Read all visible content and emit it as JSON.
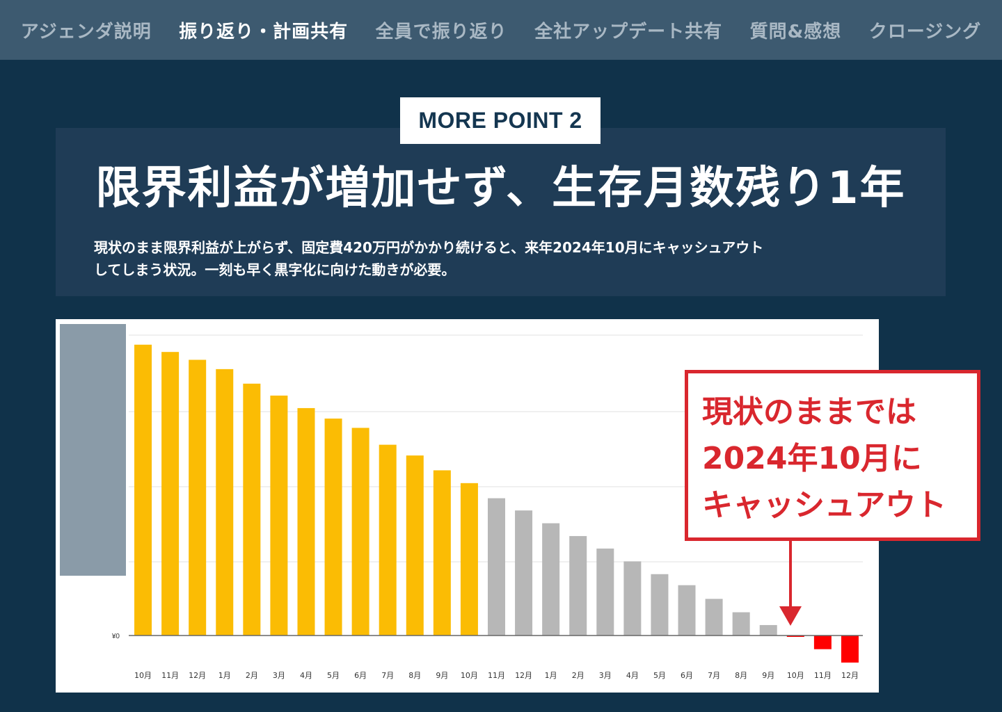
{
  "nav": {
    "items": [
      {
        "label": "アジェンダ説明",
        "active": false
      },
      {
        "label": "振り返り・計画共有",
        "active": true
      },
      {
        "label": "全員で振り返り",
        "active": false
      },
      {
        "label": "全社アップデート共有",
        "active": false
      },
      {
        "label": "質問&感想",
        "active": false
      },
      {
        "label": "クロージング",
        "active": false
      }
    ]
  },
  "badge": "MORE POINT 2",
  "headline": "限界利益が増加せず、生存月数残り1年",
  "description": {
    "line1": "現状のまま限界利益が上がらず、固定費420万円がかかり続けると、来年2024年10月にキャッシュアウト",
    "line2": "してしまう状況。一刻も早く黒字化に向けた動きが必要。"
  },
  "callout": {
    "line1": "現状のままでは",
    "line2": "2024年10月に",
    "line3": "キャッシュアウト"
  },
  "colors": {
    "actual": "#fbbc04",
    "forecast": "#b7b7b7",
    "negative": "#ff0000",
    "accent": "#d9272e"
  },
  "chart_data": {
    "type": "bar",
    "y_zero_label": "¥0",
    "categories": [
      "10月",
      "11月",
      "12月",
      "1月",
      "2月",
      "3月",
      "4月",
      "5月",
      "6月",
      "7月",
      "8月",
      "9月",
      "10月",
      "11月",
      "12月",
      "1月",
      "2月",
      "3月",
      "4月",
      "5月",
      "6月",
      "7月",
      "8月",
      "9月",
      "10月",
      "11月",
      "12月"
    ],
    "values": [
      100,
      97.5,
      94.8,
      91.6,
      86.6,
      82.5,
      78.2,
      74.6,
      71.4,
      65.6,
      61.9,
      56.8,
      52.4,
      47.2,
      43,
      38.6,
      34.2,
      29.9,
      25.5,
      21.1,
      17.3,
      12.6,
      8,
      3.6,
      -0.3,
      -4.7,
      -9.3
    ],
    "kinds": [
      "actual",
      "actual",
      "actual",
      "actual",
      "actual",
      "actual",
      "actual",
      "actual",
      "actual",
      "actual",
      "actual",
      "actual",
      "actual",
      "forecast",
      "forecast",
      "forecast",
      "forecast",
      "forecast",
      "forecast",
      "forecast",
      "forecast",
      "forecast",
      "forecast",
      "forecast",
      "negative",
      "negative",
      "negative"
    ],
    "ylim": [
      -12,
      104
    ],
    "grid": true
  }
}
